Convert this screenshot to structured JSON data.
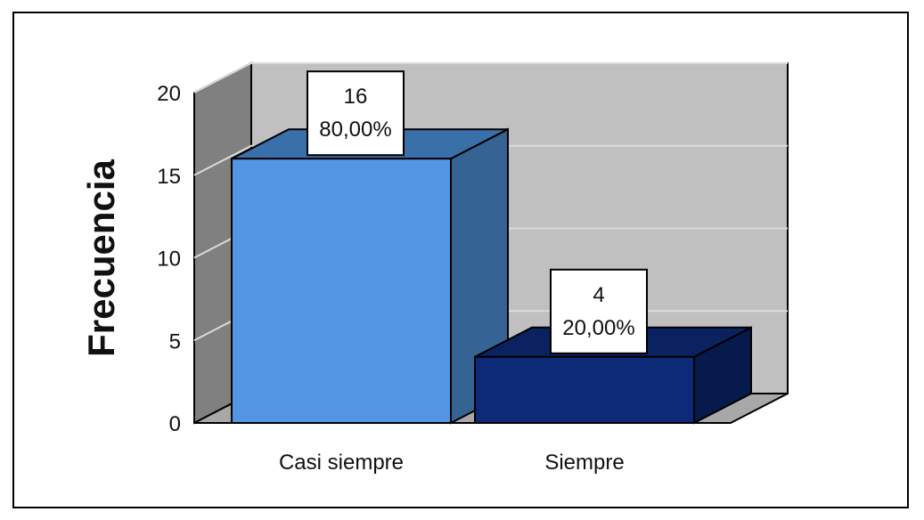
{
  "chart_data": {
    "type": "bar",
    "categories": [
      "Casi siempre",
      "Siempre"
    ],
    "values": [
      16,
      4
    ],
    "percent_labels": [
      "80,00%",
      "20,00%"
    ],
    "count_labels": [
      "16",
      "4"
    ],
    "ylabel": "Frecuencia",
    "xlabel": "",
    "ylim": [
      0,
      20
    ],
    "yticks": [
      "0",
      "5",
      "10",
      "15",
      "20"
    ],
    "three_d": true,
    "grid": true,
    "colors": {
      "bar_fronts": [
        "#5596E4",
        "#0D2A78"
      ],
      "bar_sides": [
        "#346394",
        "#061A4C"
      ],
      "bar_tops": [
        "#3A70AA",
        "#0A2260"
      ],
      "wall_back": "#C0C0C0",
      "wall_left": "#808080",
      "floor": "#A8A8A8",
      "grid": "#DADADA"
    }
  }
}
